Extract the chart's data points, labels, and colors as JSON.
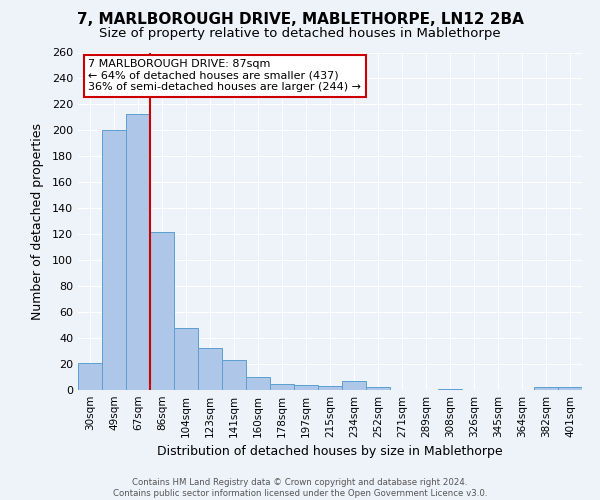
{
  "title": "7, MARLBOROUGH DRIVE, MABLETHORPE, LN12 2BA",
  "subtitle": "Size of property relative to detached houses in Mablethorpe",
  "xlabel": "Distribution of detached houses by size in Mablethorpe",
  "ylabel": "Number of detached properties",
  "bar_labels": [
    "30sqm",
    "49sqm",
    "67sqm",
    "86sqm",
    "104sqm",
    "123sqm",
    "141sqm",
    "160sqm",
    "178sqm",
    "197sqm",
    "215sqm",
    "234sqm",
    "252sqm",
    "271sqm",
    "289sqm",
    "308sqm",
    "326sqm",
    "345sqm",
    "364sqm",
    "382sqm",
    "401sqm"
  ],
  "bar_values": [
    21,
    200,
    213,
    122,
    48,
    32,
    23,
    10,
    5,
    4,
    3,
    7,
    2,
    0,
    0,
    1,
    0,
    0,
    0,
    2,
    2
  ],
  "bar_color": "#aec6e8",
  "bar_edge_color": "#5a9fd4",
  "red_line_x": 2.5,
  "annotation_title": "7 MARLBOROUGH DRIVE: 87sqm",
  "annotation_line1": "← 64% of detached houses are smaller (437)",
  "annotation_line2": "36% of semi-detached houses are larger (244) →",
  "annotation_box_color": "#ffffff",
  "annotation_border_color": "#cc0000",
  "ylim": [
    0,
    260
  ],
  "yticks": [
    0,
    20,
    40,
    60,
    80,
    100,
    120,
    140,
    160,
    180,
    200,
    220,
    240,
    260
  ],
  "footer_line1": "Contains HM Land Registry data © Crown copyright and database right 2024.",
  "footer_line2": "Contains public sector information licensed under the Open Government Licence v3.0.",
  "bg_color": "#eef2f9",
  "plot_bg_color": "#eef2f9",
  "grid_color": "#ffffff",
  "title_fontsize": 11,
  "subtitle_fontsize": 9.5
}
